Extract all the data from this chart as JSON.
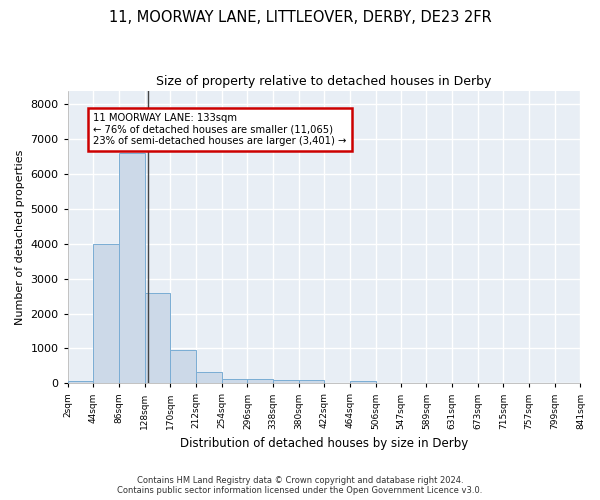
{
  "title": "11, MOORWAY LANE, LITTLEOVER, DERBY, DE23 2FR",
  "subtitle": "Size of property relative to detached houses in Derby",
  "xlabel": "Distribution of detached houses by size in Derby",
  "ylabel": "Number of detached properties",
  "bar_color": "#ccd9e8",
  "bar_edge_color": "#7aadd4",
  "background_color": "#e8eef5",
  "grid_color": "#ffffff",
  "annotation_box_color": "#cc0000",
  "property_size": 133,
  "property_label": "11 MOORWAY LANE: 133sqm",
  "annotation_line1": "← 76% of detached houses are smaller (11,065)",
  "annotation_line2": "23% of semi-detached houses are larger (3,401) →",
  "footer_line1": "Contains HM Land Registry data © Crown copyright and database right 2024.",
  "footer_line2": "Contains public sector information licensed under the Open Government Licence v3.0.",
  "bin_edges": [
    2,
    44,
    86,
    128,
    170,
    212,
    254,
    296,
    338,
    380,
    422,
    464,
    506,
    547,
    589,
    631,
    673,
    715,
    757,
    799,
    841
  ],
  "bin_labels": [
    "2sqm",
    "44sqm",
    "86sqm",
    "128sqm",
    "170sqm",
    "212sqm",
    "254sqm",
    "296sqm",
    "338sqm",
    "380sqm",
    "422sqm",
    "464sqm",
    "506sqm",
    "547sqm",
    "589sqm",
    "631sqm",
    "673sqm",
    "715sqm",
    "757sqm",
    "799sqm",
    "841sqm"
  ],
  "bar_heights": [
    70,
    4000,
    6600,
    2600,
    950,
    320,
    130,
    130,
    80,
    80,
    0,
    70,
    0,
    0,
    0,
    0,
    0,
    0,
    0,
    0
  ],
  "ylim": [
    0,
    8400
  ],
  "yticks": [
    0,
    1000,
    2000,
    3000,
    4000,
    5000,
    6000,
    7000,
    8000
  ]
}
